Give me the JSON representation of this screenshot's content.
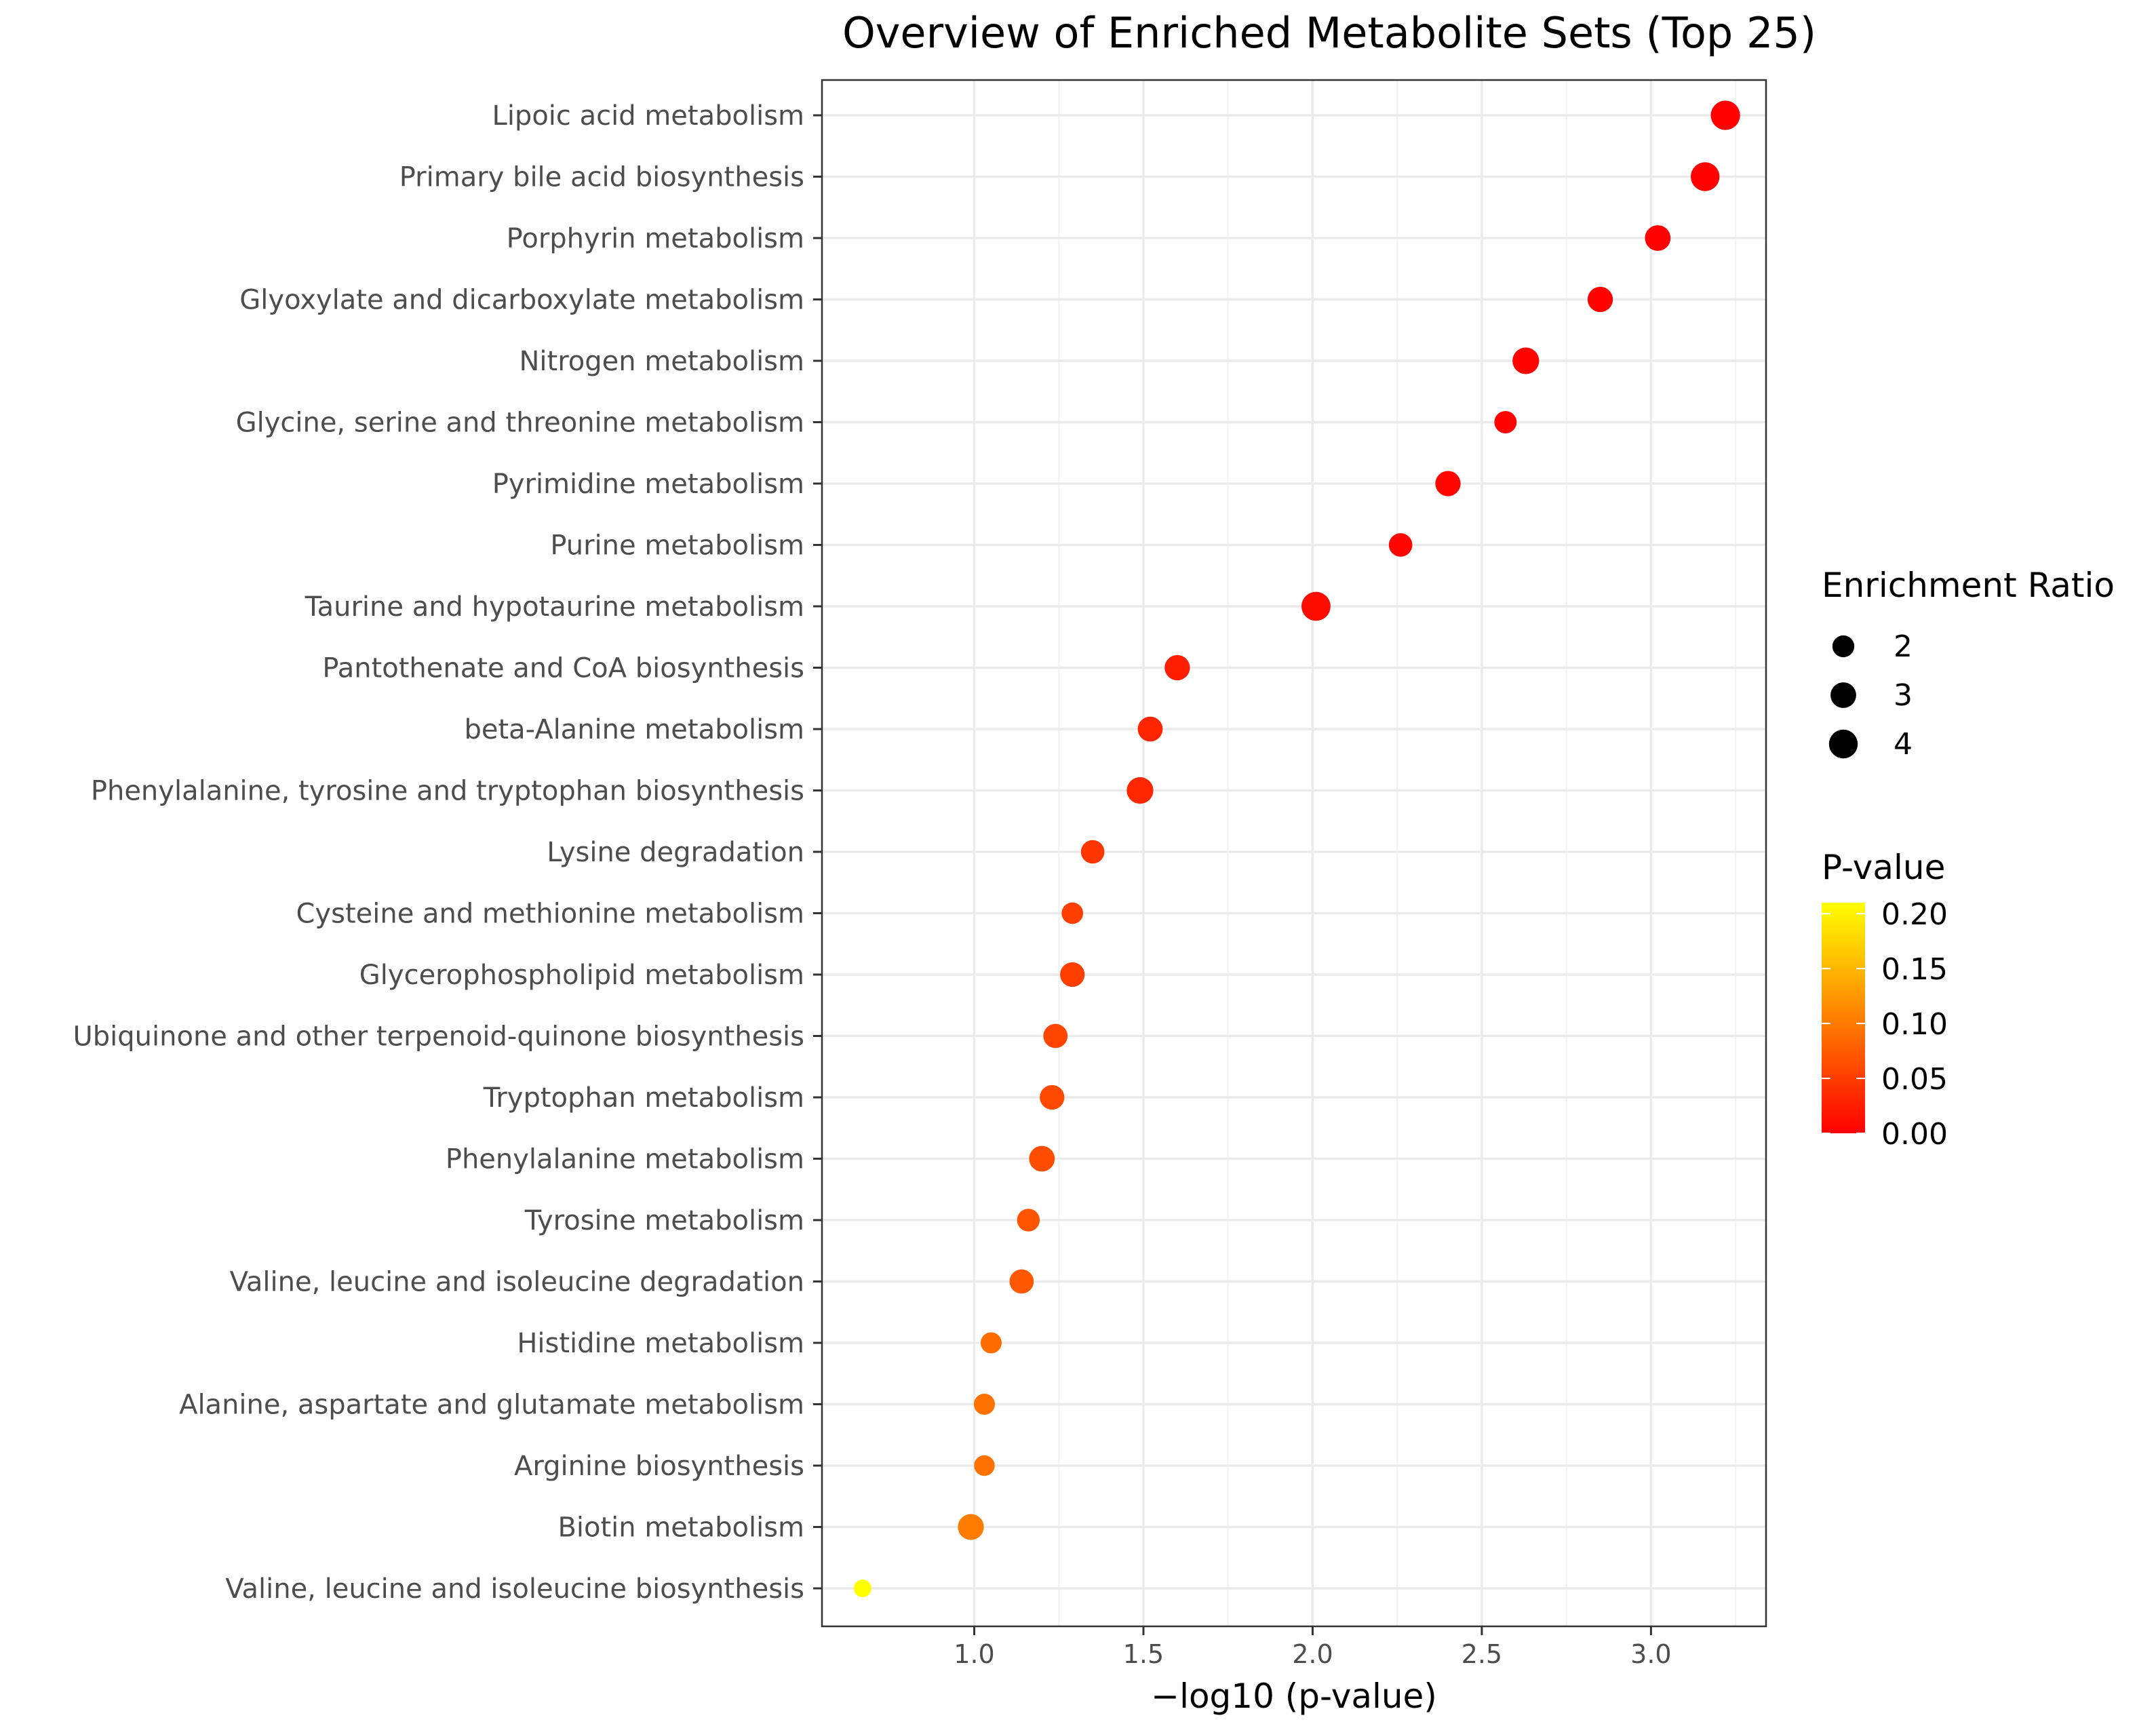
{
  "chart_data": {
    "type": "scatter",
    "title": "Overview of Enriched Metabolite Sets (Top 25)",
    "xlabel": "−log10 (p-value)",
    "ylabel": "",
    "xlim": [
      0.55,
      3.34
    ],
    "xticks": [
      1.0,
      1.5,
      2.0,
      2.5,
      3.0
    ],
    "xtick_labels": [
      "1.0",
      "1.5",
      "2.0",
      "2.5",
      "3.0"
    ],
    "grid": true,
    "size_legend": {
      "title": "Enrichment Ratio",
      "values": [
        2,
        3,
        4
      ],
      "labels": [
        "2",
        "3",
        "4"
      ]
    },
    "color_legend": {
      "title": "P-value",
      "range": [
        0.0,
        0.21
      ],
      "ticks": [
        0.0,
        0.05,
        0.1,
        0.15,
        0.2
      ],
      "tick_labels": [
        "0.00",
        "0.05",
        "0.10",
        "0.15",
        "0.20"
      ],
      "low_color": "#ff0000",
      "high_color": "#ffff00"
    },
    "points": [
      {
        "name": "Lipoic acid metabolism",
        "x": 3.22,
        "ratio": 4.2
      },
      {
        "name": "Primary bile acid biosynthesis",
        "x": 3.16,
        "ratio": 4.0
      },
      {
        "name": "Porphyrin metabolism",
        "x": 3.02,
        "ratio": 3.0
      },
      {
        "name": "Glyoxylate and dicarboxylate metabolism",
        "x": 2.85,
        "ratio": 2.9
      },
      {
        "name": "Nitrogen metabolism",
        "x": 2.63,
        "ratio": 3.3
      },
      {
        "name": "Glycine, serine and threonine metabolism",
        "x": 2.57,
        "ratio": 2.1
      },
      {
        "name": "Pyrimidine metabolism",
        "x": 2.4,
        "ratio": 2.9
      },
      {
        "name": "Purine metabolism",
        "x": 2.26,
        "ratio": 2.4
      },
      {
        "name": "Taurine and hypotaurine metabolism",
        "x": 2.01,
        "ratio": 4.1
      },
      {
        "name": "Pantothenate and CoA biosynthesis",
        "x": 1.6,
        "ratio": 2.9
      },
      {
        "name": "beta-Alanine metabolism",
        "x": 1.52,
        "ratio": 2.8
      },
      {
        "name": "Phenylalanine, tyrosine and tryptophan biosynthesis",
        "x": 1.49,
        "ratio": 3.3
      },
      {
        "name": "Lysine degradation",
        "x": 1.35,
        "ratio": 2.4
      },
      {
        "name": "Cysteine and methionine metabolism",
        "x": 1.29,
        "ratio": 1.9
      },
      {
        "name": "Glycerophospholipid metabolism",
        "x": 1.29,
        "ratio": 2.7
      },
      {
        "name": "Ubiquinone and other terpenoid-quinone biosynthesis",
        "x": 1.24,
        "ratio": 2.6
      },
      {
        "name": "Tryptophan metabolism",
        "x": 1.23,
        "ratio": 2.7
      },
      {
        "name": "Phenylalanine metabolism",
        "x": 1.2,
        "ratio": 3.0
      },
      {
        "name": "Tyrosine metabolism",
        "x": 1.16,
        "ratio": 2.2
      },
      {
        "name": "Valine, leucine and isoleucine degradation",
        "x": 1.14,
        "ratio": 2.6
      },
      {
        "name": "Histidine metabolism",
        "x": 1.05,
        "ratio": 1.8
      },
      {
        "name": "Alanine, aspartate and glutamate metabolism",
        "x": 1.03,
        "ratio": 1.8
      },
      {
        "name": "Arginine biosynthesis",
        "x": 1.03,
        "ratio": 1.7
      },
      {
        "name": "Biotin metabolism",
        "x": 0.99,
        "ratio": 3.1
      },
      {
        "name": "Valine, leucine and isoleucine biosynthesis",
        "x": 0.67,
        "ratio": 1.1
      }
    ]
  }
}
